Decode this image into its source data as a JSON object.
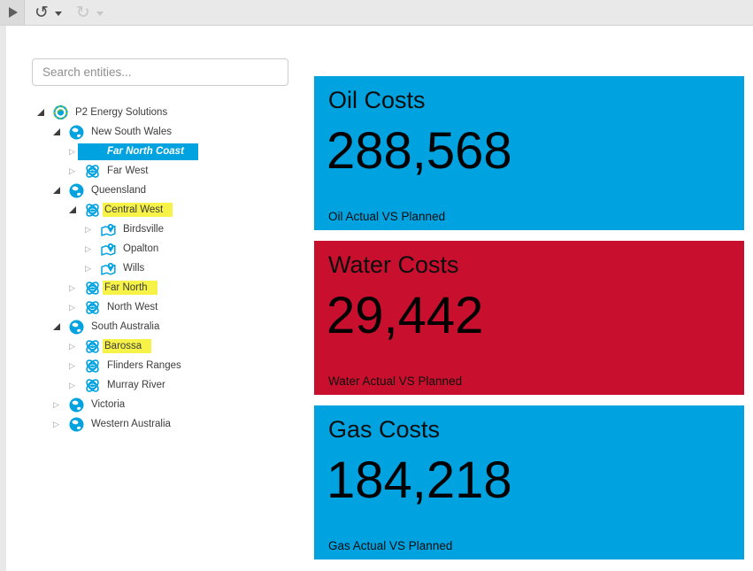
{
  "toolbar": {
    "play_icon": "play-icon",
    "undo_icon": "undo-icon",
    "redo_icon": "redo-icon"
  },
  "search": {
    "placeholder": "Search entities...",
    "value": ""
  },
  "tree": {
    "items": [
      {
        "label": "P2 Energy Solutions",
        "level": 0,
        "icon": "company-logo",
        "state": "expanded",
        "highlight": "none"
      },
      {
        "label": "New South Wales",
        "level": 1,
        "icon": "globe",
        "state": "expanded",
        "highlight": "none"
      },
      {
        "label": "Far North Coast",
        "level": 2,
        "icon": "region",
        "state": "collapsed",
        "highlight": "selected"
      },
      {
        "label": "Far West",
        "level": 2,
        "icon": "region",
        "state": "collapsed",
        "highlight": "none"
      },
      {
        "label": "Queensland",
        "level": 1,
        "icon": "globe",
        "state": "expanded",
        "highlight": "none"
      },
      {
        "label": "Central West",
        "level": 2,
        "icon": "region",
        "state": "expanded",
        "highlight": "marked"
      },
      {
        "label": "Birdsville",
        "level": 3,
        "icon": "site",
        "state": "collapsed",
        "highlight": "none"
      },
      {
        "label": "Opalton",
        "level": 3,
        "icon": "site",
        "state": "collapsed",
        "highlight": "none"
      },
      {
        "label": "Wills",
        "level": 3,
        "icon": "site",
        "state": "collapsed",
        "highlight": "none"
      },
      {
        "label": "Far North",
        "level": 2,
        "icon": "region",
        "state": "collapsed",
        "highlight": "marked"
      },
      {
        "label": "North West",
        "level": 2,
        "icon": "region",
        "state": "collapsed",
        "highlight": "none"
      },
      {
        "label": "South Australia",
        "level": 1,
        "icon": "globe",
        "state": "expanded",
        "highlight": "none"
      },
      {
        "label": "Barossa",
        "level": 2,
        "icon": "region",
        "state": "collapsed",
        "highlight": "marked"
      },
      {
        "label": "Flinders Ranges",
        "level": 2,
        "icon": "region",
        "state": "collapsed",
        "highlight": "none"
      },
      {
        "label": "Murray River",
        "level": 2,
        "icon": "region",
        "state": "collapsed",
        "highlight": "none"
      },
      {
        "label": "Victoria",
        "level": 1,
        "icon": "globe",
        "state": "collapsed",
        "highlight": "none"
      },
      {
        "label": "Western Australia",
        "level": 1,
        "icon": "globe",
        "state": "collapsed",
        "highlight": "none"
      }
    ]
  },
  "cards": [
    {
      "title": "Oil Costs",
      "value": "288,568",
      "caption": "Oil Actual VS Planned",
      "background": "#00a2e0"
    },
    {
      "title": "Water Costs",
      "value": "29,442",
      "caption": "Water Actual VS Planned",
      "background": "#c8102e"
    },
    {
      "title": "Gas Costs",
      "value": "184,218",
      "caption": "Gas Actual VS Planned",
      "background": "#00a2e0"
    }
  ],
  "colors": {
    "accent_blue": "#00a2e0",
    "accent_red": "#c8102e",
    "highlight_yellow": "#f7f247",
    "selection_blue": "#00a2e0",
    "logo_green": "#58b947"
  }
}
